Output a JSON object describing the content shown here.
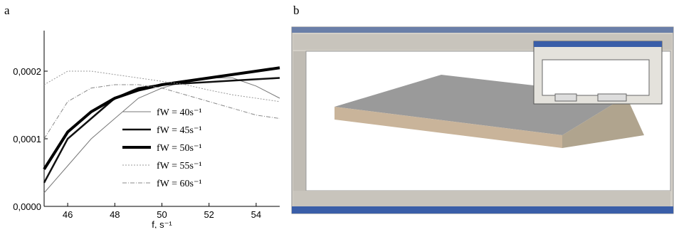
{
  "panel_labels": [
    "a",
    "b"
  ],
  "chart_data": {
    "type": "line",
    "xlabel": "f, s⁻¹",
    "xlim": [
      45,
      55
    ],
    "xticks": [
      46,
      48,
      50,
      52,
      54
    ],
    "ylim": [
      0,
      0.00026
    ],
    "yticks": [
      {
        "value": 0,
        "label": "0,0000"
      },
      {
        "value": 0.0001,
        "label": "0,0001"
      },
      {
        "value": 0.0002,
        "label": "0,0002"
      }
    ],
    "x": [
      45,
      46,
      47,
      48,
      49,
      50,
      51,
      52,
      53,
      54,
      55
    ],
    "series": [
      {
        "name": "fW = 40s⁻¹",
        "color": "#777777",
        "line_width": 1,
        "dash": "none",
        "values": [
          2e-05,
          6e-05,
          0.0001,
          0.00013,
          0.00016,
          0.000175,
          0.000185,
          0.00019,
          0.00019,
          0.000178,
          0.00016
        ]
      },
      {
        "name": "fW = 45s⁻¹",
        "color": "#111111",
        "line_width": 2.5,
        "dash": "none",
        "values": [
          3.5e-05,
          0.0001,
          0.00013,
          0.00016,
          0.000175,
          0.00018,
          0.000182,
          0.000184,
          0.000186,
          0.000188,
          0.00019
        ]
      },
      {
        "name": "fW = 50s⁻¹",
        "color": "#000000",
        "line_width": 4,
        "dash": "none",
        "values": [
          5.5e-05,
          0.00011,
          0.00014,
          0.00016,
          0.000172,
          0.00018,
          0.000185,
          0.00019,
          0.000195,
          0.0002,
          0.000205
        ]
      },
      {
        "name": "fW = 55s⁻¹",
        "color": "#999999",
        "line_width": 1,
        "dash": "2 2",
        "values": [
          0.00018,
          0.0002,
          0.0002,
          0.000195,
          0.00019,
          0.000185,
          0.00018,
          0.000172,
          0.000165,
          0.00016,
          0.000155
        ]
      },
      {
        "name": "fW = 60s⁻¹",
        "color": "#888888",
        "line_width": 1,
        "dash": "6 2 1 2",
        "values": [
          0.0001,
          0.000155,
          0.000175,
          0.00018,
          0.00018,
          0.000175,
          0.000165,
          0.000155,
          0.000145,
          0.000135,
          0.00013
        ]
      }
    ]
  }
}
